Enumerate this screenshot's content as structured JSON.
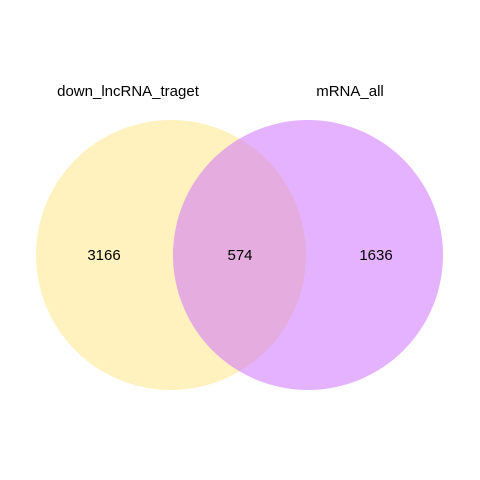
{
  "sets": [
    {
      "name": "down_lncRNA_traget",
      "color": "#FFE680"
    },
    {
      "name": "mRNA_all",
      "color": "#CC66FF"
    }
  ],
  "regions": {
    "left_only": "3166",
    "intersection": "574",
    "right_only": "1636"
  },
  "opacity": 0.5
}
